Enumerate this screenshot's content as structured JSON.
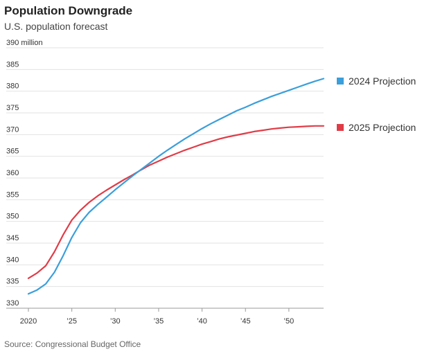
{
  "header": {
    "title": "Population Downgrade",
    "subtitle": "U.S. population forecast"
  },
  "footer": {
    "source": "Source: Congressional Budget Office"
  },
  "chart_data": {
    "type": "line",
    "title": "Population Downgrade",
    "subtitle": "U.S. population forecast",
    "xlabel": "",
    "ylabel": "",
    "ylim": [
      330,
      390
    ],
    "xlim": [
      2020,
      2054
    ],
    "yticks": [
      330,
      335,
      340,
      345,
      350,
      355,
      360,
      365,
      370,
      375,
      380,
      385,
      390
    ],
    "ytick_labels": [
      "330",
      "335",
      "340",
      "345",
      "350",
      "355",
      "360",
      "365",
      "370",
      "375",
      "380",
      "385",
      "390 million"
    ],
    "xticks": [
      2020,
      2025,
      2030,
      2035,
      2040,
      2045,
      2050
    ],
    "xtick_labels": [
      "2020",
      "’25",
      "’30",
      "’35",
      "’40",
      "’45",
      "’50"
    ],
    "grid": true,
    "legend_placement": "right",
    "x": [
      2020,
      2021,
      2022,
      2023,
      2024,
      2025,
      2026,
      2027,
      2028,
      2029,
      2030,
      2031,
      2032,
      2033,
      2034,
      2035,
      2036,
      2037,
      2038,
      2039,
      2040,
      2041,
      2042,
      2043,
      2044,
      2045,
      2046,
      2047,
      2048,
      2049,
      2050,
      2051,
      2052,
      2053,
      2054
    ],
    "series": [
      {
        "name": "2024 Projection",
        "color": "#3a9fdb",
        "values": [
          333.3,
          334.2,
          335.6,
          338.3,
          342.1,
          346.3,
          349.7,
          352.1,
          353.9,
          355.6,
          357.3,
          358.9,
          360.5,
          362.0,
          363.5,
          365.0,
          366.4,
          367.7,
          369.0,
          370.2,
          371.4,
          372.5,
          373.5,
          374.5,
          375.5,
          376.3,
          377.2,
          378.0,
          378.8,
          379.5,
          380.2,
          380.9,
          381.6,
          382.3,
          382.9
        ]
      },
      {
        "name": "2025 Projection",
        "color": "#e03c47",
        "values": [
          336.9,
          338.1,
          339.8,
          343.0,
          346.9,
          350.3,
          352.6,
          354.4,
          355.9,
          357.2,
          358.4,
          359.6,
          360.7,
          361.9,
          363.0,
          363.9,
          364.8,
          365.6,
          366.4,
          367.1,
          367.8,
          368.4,
          369.0,
          369.5,
          369.9,
          370.3,
          370.7,
          371.0,
          371.3,
          371.5,
          371.7,
          371.8,
          371.9,
          372.0,
          372.0
        ]
      }
    ]
  }
}
